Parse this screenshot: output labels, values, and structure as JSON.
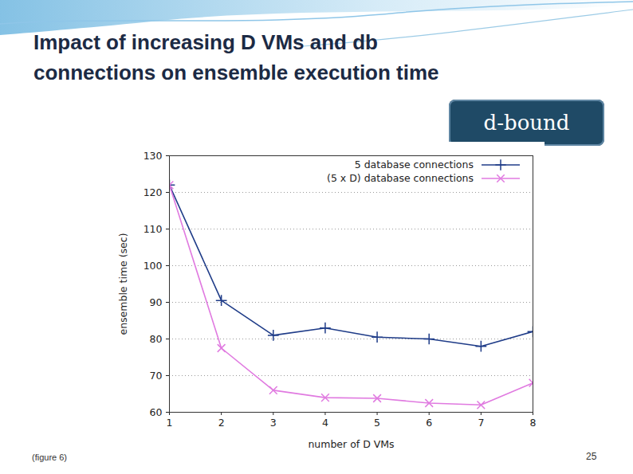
{
  "chart_data": {
    "type": "line",
    "title": "Impact of increasing D VMs and db connections on ensemble execution time",
    "annotations": [
      "d-bound",
      "(figure 6)",
      "25"
    ],
    "x_label": "number of D VMs",
    "y_label": "ensemble time (sec)",
    "x": [
      1,
      2,
      3,
      4,
      5,
      6,
      7,
      8
    ],
    "series": [
      {
        "name": "5 database connections",
        "color": "#1f3c88",
        "marker": "plus",
        "values": [
          122,
          90.5,
          81,
          83,
          80.5,
          80,
          78,
          82
        ]
      },
      {
        "name": "(5 x D) database connections",
        "color": "#e07ae0",
        "marker": "times",
        "values": [
          122,
          77.5,
          66,
          64,
          63.8,
          62.5,
          62,
          68
        ]
      }
    ],
    "xlim": [
      1,
      8
    ],
    "xticks": [
      1,
      2,
      3,
      4,
      5,
      6,
      7,
      8
    ],
    "ylim": [
      60,
      130
    ],
    "yticks": [
      60,
      70,
      80,
      90,
      100,
      110,
      120,
      130
    ],
    "grid": true,
    "legend": "top-right"
  }
}
